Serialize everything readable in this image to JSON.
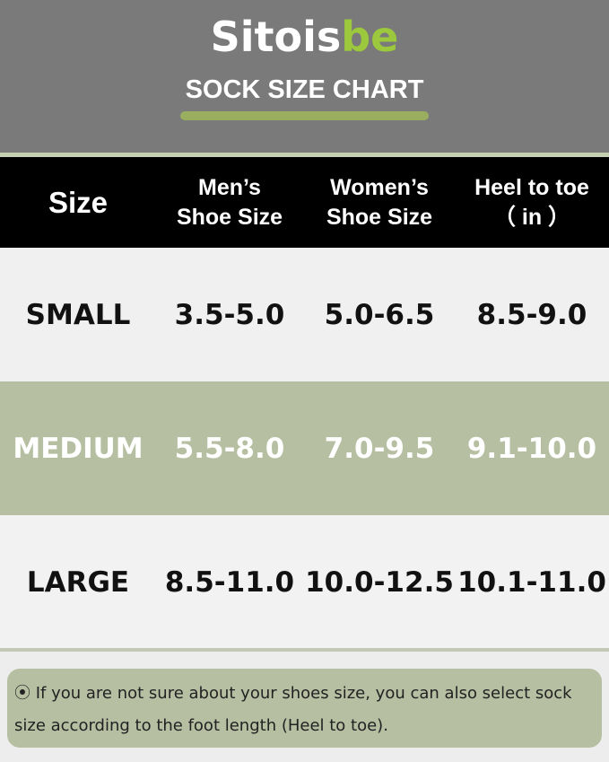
{
  "brand": {
    "logo_text_a": "Sitois",
    "logo_text_b": "be",
    "title": "SOCK SIZE CHART",
    "accent": "#9bc83c"
  },
  "table": {
    "headers": [
      "Size",
      "Men’s\nShoe Size",
      "Women’s\nShoe Size",
      "Heel to toe\n（ in ）"
    ],
    "rows": [
      {
        "size": "SMALL",
        "mens": "3.5-5.0",
        "womens": "5.0-6.5",
        "heel_to_toe": "8.5-9.0"
      },
      {
        "size": "MEDIUM",
        "mens": "5.5-8.0",
        "womens": "7.0-9.5",
        "heel_to_toe": "9.1-10.0"
      },
      {
        "size": "LARGE",
        "mens": "8.5-11.0",
        "womens": "10.0-12.5",
        "heel_to_toe": "10.1-11.0"
      }
    ]
  },
  "note": {
    "bullet_icon": "radio-bullet-icon",
    "text": "If you are not sure about your shoes size, you can also select sock size according to the foot length (Heel to toe)."
  }
}
